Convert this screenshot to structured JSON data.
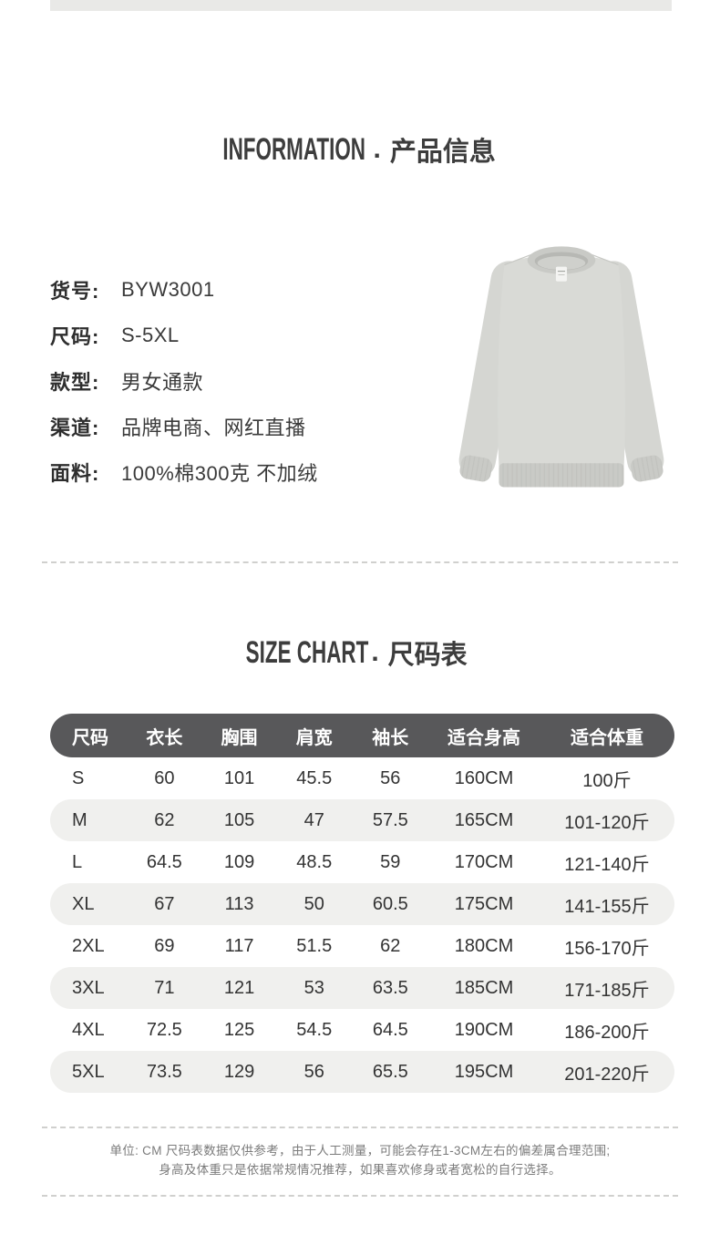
{
  "info_section": {
    "title_en": "INFORMATION",
    "title_dot": ".",
    "title_zh": "产品信息",
    "specs": [
      {
        "label": "货号:",
        "value": "BYW3001"
      },
      {
        "label": "尺码:",
        "value": "S-5XL"
      },
      {
        "label": "款型:",
        "value": "男女通款"
      },
      {
        "label": "渠道:",
        "value": "品牌电商、网红直播"
      },
      {
        "label": "面料:",
        "value": "100%棉300克 不加绒"
      }
    ],
    "product_image": "gray-crewneck-sweatshirt"
  },
  "size_section": {
    "title_en": "SIZE CHART",
    "title_dot": ".",
    "title_zh": "尺码表"
  },
  "size_table": {
    "headers": [
      "尺码",
      "衣长",
      "胸围",
      "肩宽",
      "袖长",
      "适合身高",
      "适合体重"
    ],
    "rows": [
      [
        "S",
        "60",
        "101",
        "45.5",
        "56",
        "160CM",
        "100斤"
      ],
      [
        "M",
        "62",
        "105",
        "47",
        "57.5",
        "165CM",
        "101-120斤"
      ],
      [
        "L",
        "64.5",
        "109",
        "48.5",
        "59",
        "170CM",
        "121-140斤"
      ],
      [
        "XL",
        "67",
        "113",
        "50",
        "60.5",
        "175CM",
        "141-155斤"
      ],
      [
        "2XL",
        "69",
        "117",
        "51.5",
        "62",
        "180CM",
        "156-170斤"
      ],
      [
        "3XL",
        "71",
        "121",
        "53",
        "63.5",
        "185CM",
        "171-185斤"
      ],
      [
        "4XL",
        "72.5",
        "125",
        "54.5",
        "64.5",
        "190CM",
        "186-200斤"
      ],
      [
        "5XL",
        "73.5",
        "129",
        "56",
        "65.5",
        "195CM",
        "201-220斤"
      ]
    ]
  },
  "footer": {
    "line1": "单位: CM 尺码表数据仅供参考，由于人工测量，可能会存在1-3CM左右的偏差属合理范围;",
    "line2": "身高及体重只是依据常规情况推荐，如果喜欢修身或者宽松的自行选择。"
  },
  "colors": {
    "table_header_bg": "#58585a",
    "table_alt_row_bg": "#f0f0ee",
    "top_strip_bg": "#e9e9e7",
    "heading_text": "#3d3d3d",
    "body_text": "#333333",
    "note_text": "#7b7b7b",
    "sweatshirt_gray": "#d8d9d5"
  }
}
